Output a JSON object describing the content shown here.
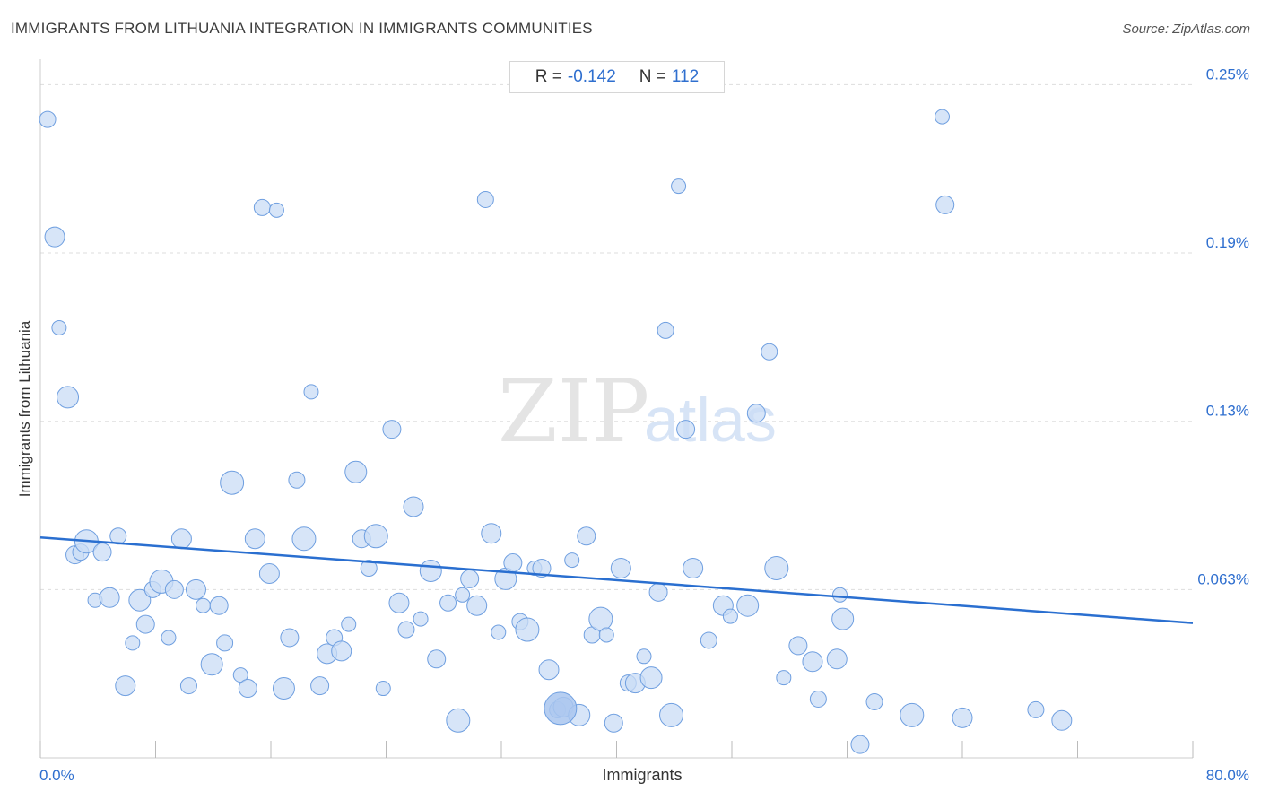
{
  "header": {
    "title": "IMMIGRANTS FROM LITHUANIA INTEGRATION IN IMMIGRANTS COMMUNITIES",
    "source": "Source: ZipAtlas.com"
  },
  "stats": {
    "r_label": "R =",
    "r_value": "-0.142",
    "n_label": "N =",
    "n_value": "112"
  },
  "watermark": {
    "zip": "ZIP",
    "atlas": "atlas"
  },
  "colors": {
    "accent": "#2f6fcf",
    "point_fill": "#c9dcf6",
    "point_stroke": "#6f9fe0",
    "trend": "#2a6fd0",
    "grid": "#dddddd"
  },
  "chart_data": {
    "type": "scatter",
    "title": "IMMIGRANTS FROM LITHUANIA INTEGRATION IN IMMIGRANTS COMMUNITIES",
    "xlabel": "Immigrants",
    "ylabel": "Immigrants from Lithuania",
    "xlim": [
      0,
      80
    ],
    "ylim": [
      0.0,
      0.2575
    ],
    "x_tick_labels": [
      {
        "value": 0,
        "label": "0.0%"
      },
      {
        "value": 80,
        "label": "80.0%"
      }
    ],
    "y_tick_labels": [
      {
        "value": 0.063,
        "label": "0.063%"
      },
      {
        "value": 0.126,
        "label": "0.13%"
      },
      {
        "value": 0.189,
        "label": "0.19%"
      },
      {
        "value": 0.252,
        "label": "0.25%"
      }
    ],
    "grid": true,
    "trendline": {
      "x": [
        0,
        80
      ],
      "y": [
        0.0825,
        0.0505
      ]
    },
    "series": [
      {
        "points": [
          [
            0.5,
            0.239
          ],
          [
            1.0,
            0.195
          ],
          [
            1.3,
            0.161
          ],
          [
            1.9,
            0.135
          ],
          [
            2.4,
            0.076
          ],
          [
            2.8,
            0.077
          ],
          [
            3.2,
            0.081
          ],
          [
            3.8,
            0.059
          ],
          [
            4.3,
            0.077
          ],
          [
            4.8,
            0.06
          ],
          [
            5.4,
            0.083
          ],
          [
            5.9,
            0.027
          ],
          [
            6.4,
            0.043
          ],
          [
            6.9,
            0.059
          ],
          [
            7.3,
            0.05
          ],
          [
            7.8,
            0.063
          ],
          [
            8.4,
            0.066
          ],
          [
            8.9,
            0.045
          ],
          [
            9.3,
            0.063
          ],
          [
            9.8,
            0.082
          ],
          [
            10.3,
            0.027
          ],
          [
            10.8,
            0.063
          ],
          [
            11.3,
            0.057
          ],
          [
            11.9,
            0.035
          ],
          [
            12.4,
            0.057
          ],
          [
            12.8,
            0.043
          ],
          [
            13.3,
            0.103
          ],
          [
            13.9,
            0.031
          ],
          [
            14.4,
            0.026
          ],
          [
            14.9,
            0.082
          ],
          [
            15.4,
            0.206
          ],
          [
            15.9,
            0.069
          ],
          [
            16.4,
            0.205
          ],
          [
            16.9,
            0.026
          ],
          [
            17.3,
            0.045
          ],
          [
            17.8,
            0.104
          ],
          [
            18.3,
            0.082
          ],
          [
            18.8,
            0.137
          ],
          [
            19.4,
            0.027
          ],
          [
            19.9,
            0.039
          ],
          [
            20.4,
            0.045
          ],
          [
            20.9,
            0.04
          ],
          [
            21.4,
            0.05
          ],
          [
            21.9,
            0.107
          ],
          [
            22.3,
            0.082
          ],
          [
            22.8,
            0.071
          ],
          [
            23.3,
            0.083
          ],
          [
            23.8,
            0.026
          ],
          [
            24.4,
            0.123
          ],
          [
            24.9,
            0.058
          ],
          [
            25.4,
            0.048
          ],
          [
            25.9,
            0.094
          ],
          [
            26.4,
            0.052
          ],
          [
            27.1,
            0.07
          ],
          [
            27.5,
            0.037
          ],
          [
            28.3,
            0.058
          ],
          [
            29.0,
            0.014
          ],
          [
            29.3,
            0.061
          ],
          [
            29.8,
            0.067
          ],
          [
            30.3,
            0.057
          ],
          [
            30.9,
            0.209
          ],
          [
            31.3,
            0.084
          ],
          [
            31.8,
            0.047
          ],
          [
            32.3,
            0.067
          ],
          [
            32.8,
            0.073
          ],
          [
            33.3,
            0.051
          ],
          [
            33.8,
            0.048
          ],
          [
            34.3,
            0.071
          ],
          [
            34.8,
            0.071
          ],
          [
            35.3,
            0.033
          ],
          [
            35.9,
            0.018
          ],
          [
            36.3,
            0.019
          ],
          [
            36.9,
            0.074
          ],
          [
            37.4,
            0.016
          ],
          [
            37.9,
            0.083
          ],
          [
            38.3,
            0.046
          ],
          [
            38.9,
            0.052
          ],
          [
            39.3,
            0.046
          ],
          [
            39.8,
            0.013
          ],
          [
            40.3,
            0.071
          ],
          [
            40.8,
            0.028
          ],
          [
            41.3,
            0.028
          ],
          [
            41.9,
            0.038
          ],
          [
            42.4,
            0.03
          ],
          [
            42.9,
            0.062
          ],
          [
            43.4,
            0.16
          ],
          [
            43.8,
            0.016
          ],
          [
            44.3,
            0.214
          ],
          [
            44.8,
            0.123
          ],
          [
            45.3,
            0.071
          ],
          [
            46.4,
            0.044
          ],
          [
            47.4,
            0.057
          ],
          [
            47.9,
            0.053
          ],
          [
            49.1,
            0.057
          ],
          [
            49.7,
            0.129
          ],
          [
            50.6,
            0.152
          ],
          [
            51.1,
            0.071
          ],
          [
            51.6,
            0.03
          ],
          [
            52.6,
            0.042
          ],
          [
            53.6,
            0.036
          ],
          [
            54.0,
            0.022
          ],
          [
            55.3,
            0.037
          ],
          [
            55.5,
            0.061
          ],
          [
            55.7,
            0.052
          ],
          [
            56.9,
            0.005
          ],
          [
            57.9,
            0.021
          ],
          [
            60.5,
            0.016
          ],
          [
            62.6,
            0.24
          ],
          [
            62.8,
            0.207
          ],
          [
            64.0,
            0.015
          ],
          [
            69.1,
            0.018
          ],
          [
            70.9,
            0.014
          ]
        ]
      }
    ]
  }
}
